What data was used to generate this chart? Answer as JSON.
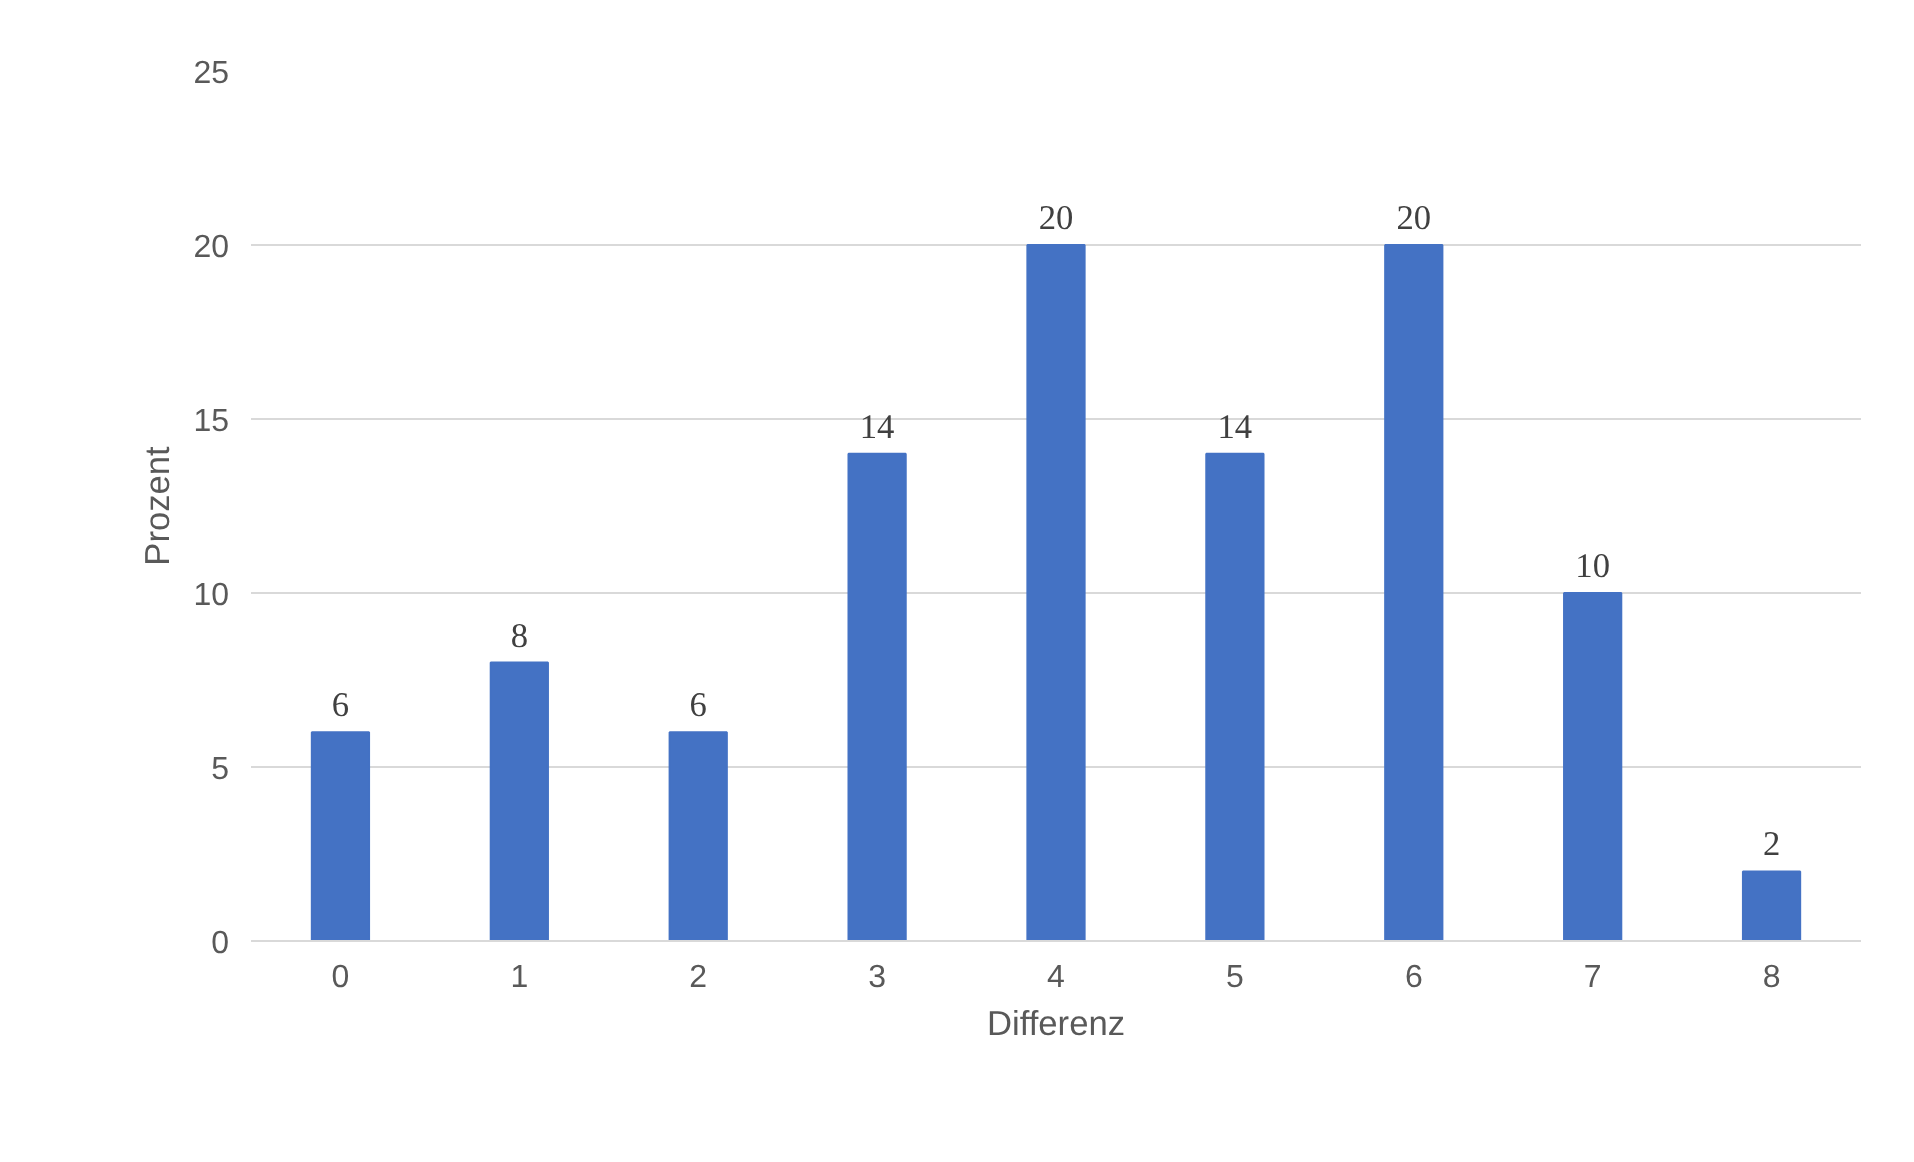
{
  "chart_data": {
    "type": "bar",
    "xlabel": "Differenz",
    "ylabel": "Prozent",
    "categories": [
      "0",
      "1",
      "2",
      "3",
      "4",
      "5",
      "6",
      "7",
      "8"
    ],
    "values": [
      6,
      8,
      6,
      14,
      20,
      14,
      20,
      10,
      2
    ],
    "color": "#4472c4",
    "ylim": [
      0,
      25
    ],
    "yticks": [
      0,
      5,
      10,
      15,
      20,
      25
    ],
    "grid": "y",
    "data_labels": true
  }
}
